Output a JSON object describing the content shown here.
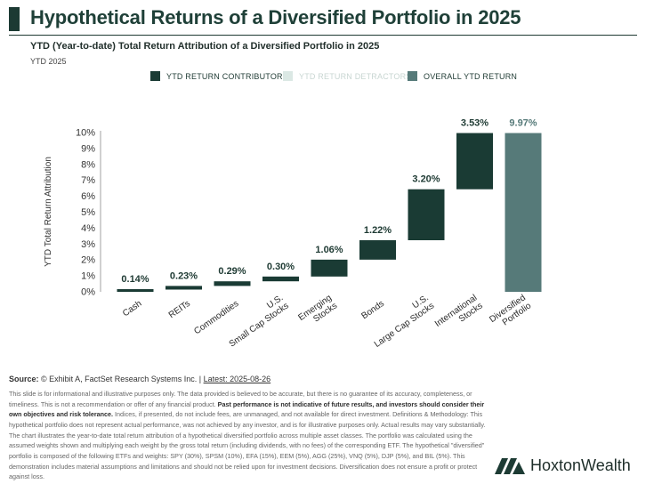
{
  "header": {
    "title": "Hypothetical Returns of a Diversified Portfolio in 2025",
    "subtitle": "YTD (Year-to-date) Total Return Attribution of a Diversified Portfolio in 2025",
    "period": "YTD 2025"
  },
  "legend": {
    "items": [
      {
        "label": "YTD RETURN CONTRIBUTORS",
        "color": "#1a3b34"
      },
      {
        "label": "YTD RETURN DETRACTORS",
        "color": "#dbe8e4"
      },
      {
        "label": "OVERALL YTD RETURN",
        "color": "#567a79"
      }
    ]
  },
  "chart_data": {
    "type": "bar",
    "subtype": "waterfall",
    "categories": [
      "Cash",
      "REITs",
      "Commodities",
      "U.S. Small Cap Stocks",
      "Emerging Stocks",
      "Bonds",
      "U.S. Large Cap Stocks",
      "International Stocks",
      "Diversified Portfolio"
    ],
    "category_lines": [
      [
        "Cash"
      ],
      [
        "REITs"
      ],
      [
        "Commodities"
      ],
      [
        "U.S.",
        "Small Cap Stocks"
      ],
      [
        "Emerging",
        "Stocks"
      ],
      [
        "Bonds"
      ],
      [
        "U.S.",
        "Large Cap Stocks"
      ],
      [
        "International",
        "Stocks"
      ],
      [
        "Diversified",
        "Portfolio"
      ]
    ],
    "values": [
      0.14,
      0.23,
      0.29,
      0.3,
      1.06,
      1.22,
      3.2,
      3.53,
      9.97
    ],
    "data_labels": [
      "0.14%",
      "0.23%",
      "0.29%",
      "0.30%",
      "1.06%",
      "1.22%",
      "3.20%",
      "3.53%",
      "9.97%"
    ],
    "series_kind": [
      "contributor",
      "contributor",
      "contributor",
      "contributor",
      "contributor",
      "contributor",
      "contributor",
      "contributor",
      "total"
    ],
    "ylabel": "YTD Total Return Attribution",
    "xlabel": "",
    "ylim": [
      0,
      10
    ],
    "yticks": [
      "0%",
      "1%",
      "2%",
      "3%",
      "4%",
      "5%",
      "6%",
      "7%",
      "8%",
      "9%",
      "10%"
    ],
    "grid": false,
    "legend_position": "top",
    "colors": {
      "contributor": "#1a3b34",
      "total": "#567a79"
    }
  },
  "footer": {
    "source_label": "Source:",
    "source_text": "© Exhibit A, FactSet Research Systems Inc. |",
    "latest": "Latest: 2025-08-26",
    "disclaimer_1": "This slide is for informational and illustrative purposes only. The data provided is believed to be accurate, but there is no guarantee of its accuracy, completeness, or timeliness. This is not a recommendation or offer of any financial product.",
    "disclaimer_bold": "Past performance is not indicative of future results, and investors should consider their own objectives and risk tolerance.",
    "disclaimer_2": "Indices, if presented, do not include fees, are unmanaged, and not available for direct investment. Definitions & Methodology: This hypothetical portfolio does not represent actual performance, was not achieved by any investor, and is for illustrative purposes only. Actual results may vary substantially. The chart illustrates the year-to-date total return attribution of a hypothetical diversified portfolio across multiple asset classes. The portfolio was calculated using the assumed weights shown and multiplying each weight by the gross total return (including dividends, with no fees) of the corresponding ETF. The hypothetical \"diversified\" portfolio is composed of the following ETFs and weights: SPY (30%), SPSM (10%), EFA (15%), EEM (5%), AGG (25%), VNQ (5%), DJP (5%), and BIL (5%). This demonstration includes material assumptions and limitations and should not be relied upon for investment decisions. Diversification does not ensure a profit or protect against loss."
  },
  "brand": {
    "name": "HoxtonWealth",
    "logo_icon": "hoxton-logo-icon"
  }
}
